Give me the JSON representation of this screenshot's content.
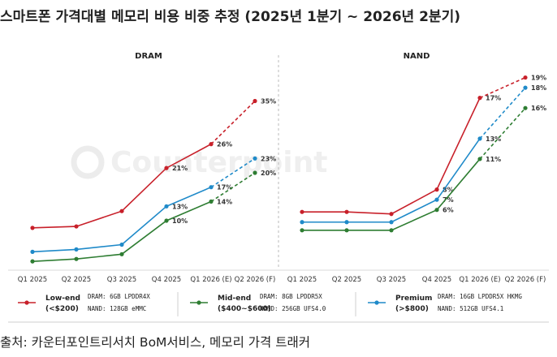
{
  "title": "스마트폰 가격대별 메모리 비용 비중 추정 (2025년 1분기 ~ 2026년 2분기)",
  "source": "출처: 카운터포인트리서치 BoM서비스, 메모리 가격 트래커",
  "watermark": "Counterpoint",
  "colors": {
    "low": "#c8202a",
    "mid": "#2e7d32",
    "premium": "#1f8ac9"
  },
  "chart_data": [
    {
      "type": "line",
      "title": "DRAM",
      "categories": [
        "Q1 2025",
        "Q2 2025",
        "Q3 2025",
        "Q4 2025",
        "Q1 2026 (E)",
        "Q2 2026 (F)"
      ],
      "dashed_from_index": 4,
      "ylim": [
        0,
        40
      ],
      "series": [
        {
          "key": "low",
          "values": [
            8.5,
            8.8,
            12.0,
            21,
            26,
            35
          ],
          "labels": [
            null,
            null,
            null,
            "21%",
            "26%",
            "35%"
          ]
        },
        {
          "key": "premium",
          "values": [
            3.5,
            4.0,
            5.0,
            13,
            17,
            23
          ],
          "labels": [
            null,
            null,
            null,
            "13%",
            "17%",
            "23%"
          ]
        },
        {
          "key": "mid",
          "values": [
            1.5,
            2.0,
            3.0,
            10,
            14,
            20
          ],
          "labels": [
            null,
            null,
            null,
            "10%",
            "14%",
            "20%"
          ]
        }
      ]
    },
    {
      "type": "line",
      "title": "NAND",
      "categories": [
        "Q1 2025",
        "Q2 2025",
        "Q3 2025",
        "Q4 2025",
        "Q1 2026 (E)",
        "Q2 2026 (F)"
      ],
      "dashed_from_index": 4,
      "ylim": [
        0,
        20
      ],
      "series": [
        {
          "key": "low",
          "values": [
            5.8,
            5.8,
            5.6,
            8,
            17,
            19
          ],
          "labels": [
            null,
            null,
            null,
            "8%",
            "17%",
            "19%"
          ]
        },
        {
          "key": "premium",
          "values": [
            4.8,
            4.8,
            4.8,
            7,
            13,
            18
          ],
          "labels": [
            null,
            null,
            null,
            "7%",
            "13%",
            "18%"
          ]
        },
        {
          "key": "mid",
          "values": [
            4.0,
            4.0,
            4.0,
            6,
            11,
            16
          ],
          "labels": [
            null,
            null,
            null,
            "6%",
            "11%",
            "16%"
          ]
        }
      ]
    }
  ],
  "legend": [
    {
      "key": "low",
      "label": [
        "Low-end",
        "(<$200)"
      ],
      "dram": "DRAM: 6GB LPDDR4X",
      "nand": "NAND: 128GB eMMC"
    },
    {
      "key": "mid",
      "label": [
        "Mid-end",
        "($400~$600)"
      ],
      "dram": "DRAM: 8GB LPDDR5X",
      "nand": "NAND: 256GB UFS4.0"
    },
    {
      "key": "premium",
      "label": [
        "Premium",
        "(>$800)"
      ],
      "dram": "DRAM: 16GB LPDDR5X HKMG",
      "nand": "NAND: 512GB UFS4.1"
    }
  ]
}
